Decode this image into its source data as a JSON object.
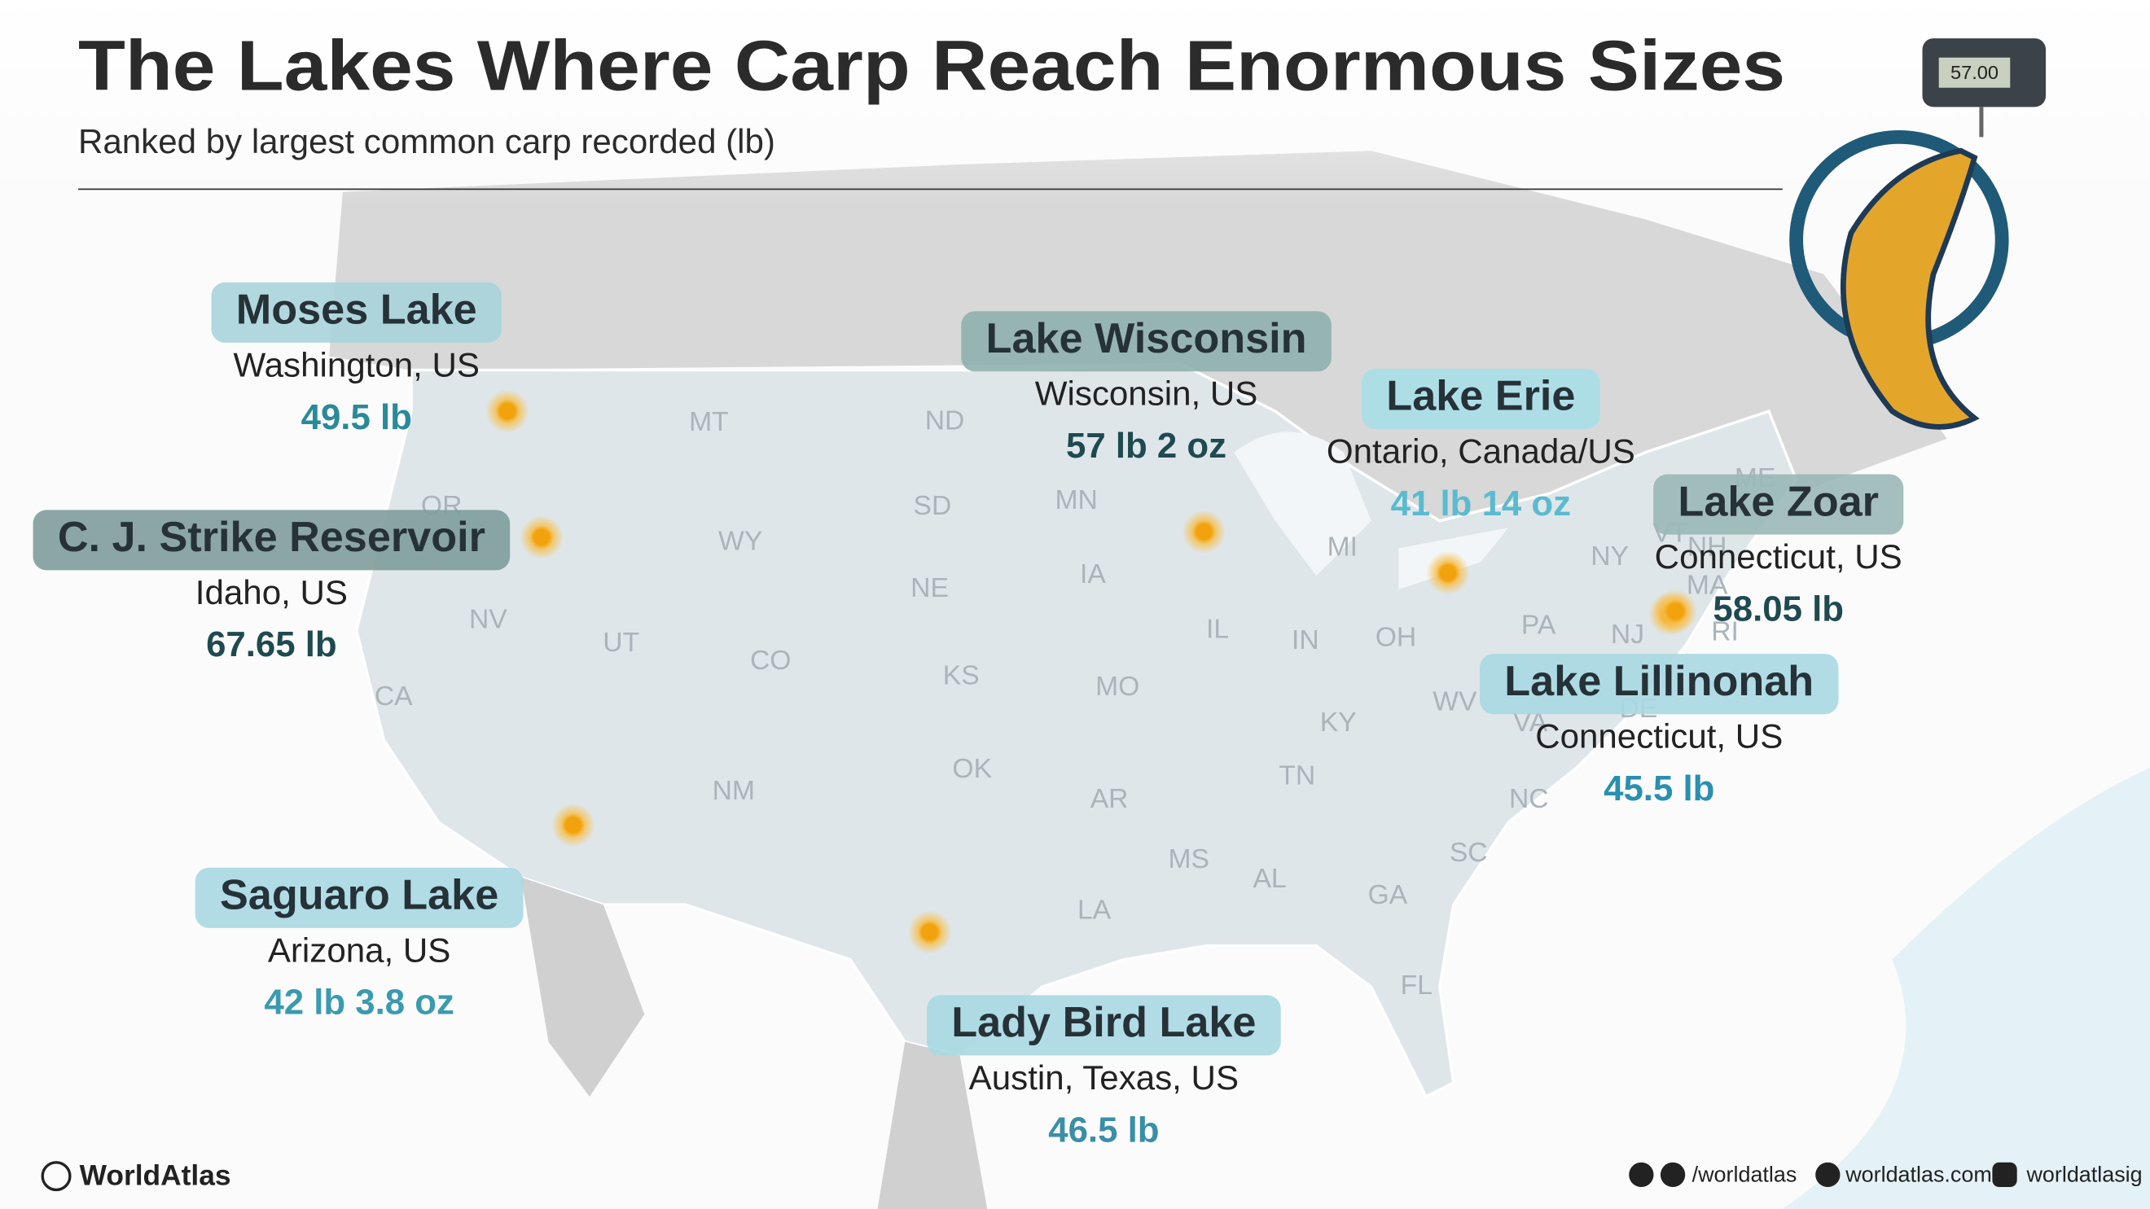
{
  "header": {
    "title": "The Lakes Where Carp Reach Enormous Sizes",
    "subtitle": "Ranked by largest common carp recorded (lb)",
    "scale_display": "57.00"
  },
  "lakes": [
    {
      "name": "Moses Lake",
      "location": "Washington, US",
      "weight": "49.5 lb"
    },
    {
      "name": "C. J. Strike Reservoir",
      "location": "Idaho, US",
      "weight": "67.65 lb"
    },
    {
      "name": "Saguaro Lake",
      "location": "Arizona, US",
      "weight": "42 lb 3.8 oz"
    },
    {
      "name": "Lady Bird Lake",
      "location": "Austin, Texas, US",
      "weight": "46.5 lb"
    },
    {
      "name": "Lake Wisconsin",
      "location": "Wisconsin, US",
      "weight": "57 lb 2 oz"
    },
    {
      "name": "Lake Erie",
      "location": "Ontario, Canada/US",
      "weight": "41 lb 14 oz"
    },
    {
      "name": "Lake Zoar",
      "location": "Connecticut, US",
      "weight": "58.05 lb"
    },
    {
      "name": "Lake Lillinonah",
      "location": "Connecticut, US",
      "weight": "45.5 lb"
    }
  ],
  "states": [
    "MT",
    "ND",
    "SD",
    "MN",
    "WY",
    "NE",
    "IA",
    "OR",
    "NV",
    "UT",
    "CO",
    "KS",
    "MO",
    "IL",
    "IN",
    "OH",
    "MI",
    "PA",
    "NY",
    "CA",
    "NM",
    "OK",
    "AR",
    "TN",
    "KY",
    "WV",
    "VA",
    "NC",
    "SC",
    "MS",
    "AL",
    "GA",
    "LA",
    "FL",
    "NJ",
    "DE",
    "MA",
    "RI",
    "VT",
    "NH",
    "ME"
  ],
  "footer": {
    "brand": "WorldAtlas",
    "social": "/worldatlas",
    "website": "worldatlas.com",
    "instagram": "worldatlasig"
  }
}
